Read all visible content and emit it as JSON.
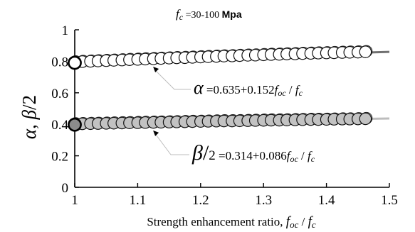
{
  "chart_data": {
    "type": "scatter",
    "title": {
      "main": "f",
      "sub": "c",
      "range": " =30-100 ",
      "unit": "Mpa"
    },
    "xlabel": {
      "text": "Strength enhancement ratio,  ",
      "f1": "f",
      "sub1": "oc",
      "slash": " / ",
      "f2": "f",
      "sub2": "c"
    },
    "ylabel": {
      "alpha": "α",
      "comma": ", ",
      "beta": "β",
      "div": "/2"
    },
    "xlim": [
      1,
      1.5
    ],
    "ylim": [
      0,
      1
    ],
    "x_ticks": [
      "1",
      "1.1",
      "1.2",
      "1.3",
      "1.4",
      "1.5"
    ],
    "y_ticks": [
      "0",
      "0.2",
      "0.4",
      "0.6",
      "0.8",
      "1"
    ],
    "grid": false,
    "series": [
      {
        "name": "α",
        "marker_fill": "#ffffff",
        "x": [
          1.0,
          1.012,
          1.025,
          1.037,
          1.05,
          1.062,
          1.075,
          1.087,
          1.1,
          1.112,
          1.125,
          1.137,
          1.15,
          1.162,
          1.175,
          1.187,
          1.2,
          1.212,
          1.225,
          1.237,
          1.25,
          1.262,
          1.275,
          1.287,
          1.3,
          1.312,
          1.325,
          1.337,
          1.35,
          1.362,
          1.375,
          1.387,
          1.4,
          1.412,
          1.425,
          1.437,
          1.45,
          1.462
        ],
        "y": [
          0.795,
          0.798,
          0.8,
          0.802,
          0.804,
          0.806,
          0.808,
          0.81,
          0.812,
          0.814,
          0.816,
          0.818,
          0.82,
          0.822,
          0.823,
          0.825,
          0.827,
          0.829,
          0.831,
          0.833,
          0.834,
          0.836,
          0.838,
          0.839,
          0.841,
          0.843,
          0.844,
          0.846,
          0.847,
          0.849,
          0.85,
          0.852,
          0.853,
          0.854,
          0.856,
          0.857,
          0.858,
          0.86
        ]
      },
      {
        "name": "β/2",
        "marker_fill": "#c2c2c2",
        "x": [
          1.0,
          1.012,
          1.025,
          1.037,
          1.05,
          1.062,
          1.075,
          1.087,
          1.1,
          1.112,
          1.125,
          1.137,
          1.15,
          1.162,
          1.175,
          1.187,
          1.2,
          1.212,
          1.225,
          1.237,
          1.25,
          1.262,
          1.275,
          1.287,
          1.3,
          1.312,
          1.325,
          1.337,
          1.35,
          1.362,
          1.375,
          1.387,
          1.4,
          1.412,
          1.425,
          1.437,
          1.45,
          1.462
        ],
        "y": [
          0.402,
          0.403,
          0.404,
          0.405,
          0.406,
          0.407,
          0.408,
          0.409,
          0.41,
          0.411,
          0.412,
          0.413,
          0.414,
          0.415,
          0.416,
          0.417,
          0.418,
          0.419,
          0.42,
          0.421,
          0.421,
          0.422,
          0.423,
          0.424,
          0.425,
          0.426,
          0.426,
          0.427,
          0.428,
          0.429,
          0.43,
          0.43,
          0.431,
          0.432,
          0.433,
          0.433,
          0.434,
          0.435
        ]
      }
    ],
    "fit_lines": [
      {
        "x_end": 1.5,
        "y_start": 0.802,
        "y_end": 0.86,
        "color": "#707070"
      },
      {
        "x_end": 1.5,
        "y_start": 0.402,
        "y_end": 0.437,
        "color": "#bdbdbd"
      }
    ],
    "annotations": [
      {
        "lhs": "α",
        "eq": " =0.635+0.152",
        "f1": "f",
        "sub1": "oc",
        "slash": " / ",
        "f2": "f",
        "sub2": "c",
        "points_to": [
          1.12,
          0.82
        ]
      },
      {
        "lhs": "β",
        "lhs2": "/",
        "lhs3": "2",
        "eq": " =0.314+0.086",
        "f1": "f",
        "sub1": "oc",
        "slash": " / ",
        "f2": "f",
        "sub2": "c",
        "points_to": [
          1.12,
          0.415
        ]
      }
    ]
  }
}
